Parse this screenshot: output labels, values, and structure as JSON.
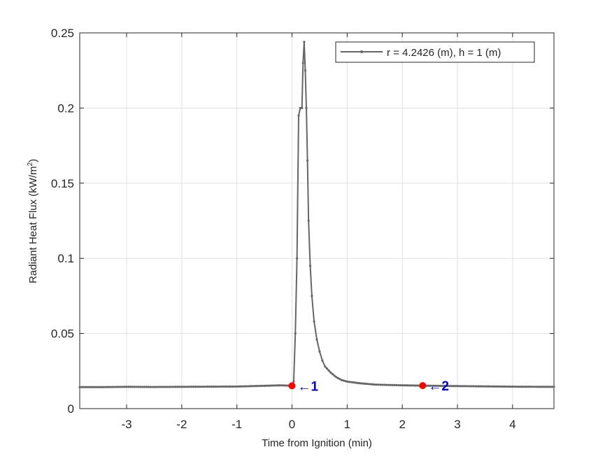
{
  "chart_data": {
    "type": "line",
    "xlabel": "Time from Ignition (min)",
    "ylabel": "Radiant Heat Flux (kW/m",
    "ylabel_sup": "2",
    "ylabel_close": ")",
    "xlim": [
      -3.85,
      4.75
    ],
    "ylim": [
      0,
      0.25
    ],
    "xticks": [
      -3,
      -2,
      -1,
      0,
      1,
      2,
      3,
      4
    ],
    "xtick_labels": [
      "-3",
      "-2",
      "-1",
      "0",
      "1",
      "2",
      "3",
      "4"
    ],
    "yticks": [
      0,
      0.05,
      0.1,
      0.15,
      0.2,
      0.25
    ],
    "ytick_labels": [
      "0",
      "0.05",
      "0.1",
      "0.15",
      "0.2",
      "0.25"
    ],
    "grid": true,
    "legend_position": "top-right",
    "series": [
      {
        "name": "r = 4.2426 (m), h = 1 (m)",
        "color": "#666666",
        "x": [
          -3.85,
          -3.5,
          -3.0,
          -2.5,
          -2.0,
          -1.5,
          -1.0,
          -0.5,
          -0.2,
          0.0,
          0.03,
          0.06,
          0.09,
          0.12,
          0.15,
          0.18,
          0.2,
          0.22,
          0.24,
          0.26,
          0.28,
          0.3,
          0.33,
          0.36,
          0.4,
          0.45,
          0.5,
          0.55,
          0.6,
          0.7,
          0.8,
          0.9,
          1.0,
          1.2,
          1.5,
          2.0,
          2.37,
          3.0,
          3.5,
          4.0,
          4.5,
          4.75
        ],
        "y": [
          0.0143,
          0.0143,
          0.0145,
          0.0144,
          0.0145,
          0.0146,
          0.0147,
          0.0152,
          0.0155,
          0.0152,
          0.018,
          0.05,
          0.1,
          0.195,
          0.2,
          0.2,
          0.23,
          0.244,
          0.225,
          0.2,
          0.165,
          0.125,
          0.095,
          0.075,
          0.058,
          0.046,
          0.038,
          0.032,
          0.028,
          0.024,
          0.021,
          0.019,
          0.018,
          0.017,
          0.016,
          0.0155,
          0.0153,
          0.015,
          0.0148,
          0.0146,
          0.0145,
          0.0145
        ]
      }
    ],
    "markers": [
      {
        "label": "1",
        "x": 0.0,
        "y": 0.0152
      },
      {
        "label": "2",
        "x": 2.37,
        "y": 0.0153
      }
    ],
    "marker_color": "#ff0000",
    "marker_label_color": "#0000cd",
    "arrow_glyph": "←"
  }
}
